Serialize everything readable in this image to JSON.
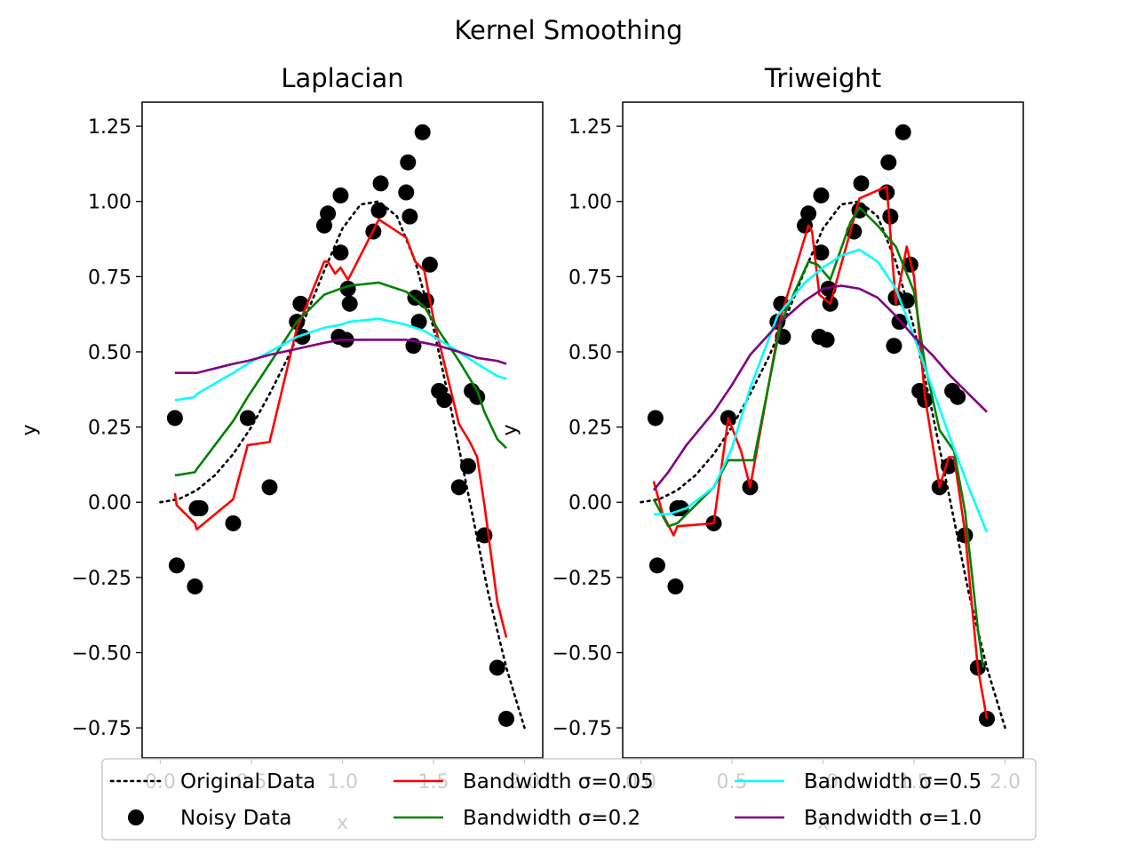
{
  "figure": {
    "title": "Kernel Smoothing"
  },
  "legend": {
    "placement": "bottom-center",
    "entries": [
      {
        "label": "Original Data",
        "color": "#000000",
        "style": "dotted-line"
      },
      {
        "label": "Noisy Data",
        "color": "#000000",
        "style": "marker"
      },
      {
        "label": "Bandwidth σ=0.05",
        "color": "#ff0000",
        "style": "line"
      },
      {
        "label": "Bandwidth σ=0.2",
        "color": "#008000",
        "style": "line"
      },
      {
        "label": "Bandwidth σ=0.5",
        "color": "#00ffff",
        "style": "line"
      },
      {
        "label": "Bandwidth σ=1.0",
        "color": "#800080",
        "style": "line"
      }
    ]
  },
  "chart_data": [
    {
      "type": "line",
      "title": "Laplacian",
      "xlabel": "x",
      "ylabel": "y",
      "xlim": [
        -0.1,
        2.1
      ],
      "ylim": [
        -0.85,
        1.33
      ],
      "xticks": [
        0.0,
        0.5,
        1.0,
        1.5,
        2.0
      ],
      "xtick_labels": [
        "0.0",
        "0.5",
        "1.0",
        "1.5",
        "2.0"
      ],
      "yticks": [
        -0.75,
        -0.5,
        -0.25,
        0.0,
        0.25,
        0.5,
        0.75,
        1.0,
        1.25
      ],
      "ytick_labels": [
        "−0.75",
        "−0.50",
        "−0.25",
        "0.00",
        "0.25",
        "0.50",
        "0.75",
        "1.00",
        "1.25"
      ],
      "grid": false,
      "original": {
        "x": [
          0,
          0.1,
          0.2,
          0.3,
          0.4,
          0.5,
          0.6,
          0.7,
          0.8,
          0.9,
          1.0,
          1.1,
          1.2,
          1.3,
          1.4,
          1.5,
          1.6,
          1.7,
          1.8,
          1.9,
          2.0
        ],
        "y": [
          0.0,
          0.01,
          0.04,
          0.09,
          0.16,
          0.25,
          0.36,
          0.48,
          0.62,
          0.77,
          0.91,
          0.99,
          1.0,
          0.95,
          0.8,
          0.58,
          0.3,
          0.0,
          -0.3,
          -0.55,
          -0.75
        ]
      },
      "noisy": {
        "x": [
          0.08,
          0.09,
          0.19,
          0.2,
          0.22,
          0.4,
          0.48,
          0.6,
          0.75,
          0.77,
          0.78,
          0.9,
          0.92,
          0.98,
          0.99,
          0.99,
          1.02,
          1.03,
          1.04,
          1.17,
          1.2,
          1.21,
          1.35,
          1.36,
          1.37,
          1.39,
          1.4,
          1.42,
          1.44,
          1.46,
          1.48,
          1.53,
          1.56,
          1.64,
          1.69,
          1.71,
          1.74,
          1.78,
          1.85,
          1.9
        ],
        "y": [
          0.28,
          -0.21,
          -0.28,
          -0.02,
          -0.02,
          -0.07,
          0.28,
          0.05,
          0.6,
          0.66,
          0.55,
          0.92,
          0.96,
          0.55,
          0.83,
          1.02,
          0.54,
          0.71,
          0.66,
          0.9,
          0.97,
          1.06,
          1.03,
          1.13,
          0.95,
          0.52,
          0.68,
          0.6,
          1.23,
          0.67,
          0.79,
          0.37,
          0.34,
          0.05,
          0.12,
          0.37,
          0.35,
          -0.11,
          -0.55,
          -0.72
        ]
      },
      "series": [
        {
          "name": "Bandwidth σ=0.05",
          "color": "#ff0000",
          "x": [
            0.08,
            0.09,
            0.19,
            0.2,
            0.4,
            0.48,
            0.6,
            0.75,
            0.78,
            0.9,
            0.92,
            0.96,
            0.99,
            1.03,
            1.04,
            1.2,
            1.35,
            1.4,
            1.45,
            1.5,
            1.64,
            1.7,
            1.74,
            1.78,
            1.85,
            1.9
          ],
          "y": [
            0.03,
            -0.01,
            -0.07,
            -0.09,
            0.01,
            0.19,
            0.2,
            0.58,
            0.62,
            0.8,
            0.8,
            0.76,
            0.78,
            0.74,
            0.75,
            0.94,
            0.88,
            0.8,
            0.77,
            0.61,
            0.26,
            0.2,
            0.15,
            -0.01,
            -0.33,
            -0.45
          ]
        },
        {
          "name": "Bandwidth σ=0.2",
          "color": "#008000",
          "x": [
            0.08,
            0.09,
            0.19,
            0.2,
            0.4,
            0.48,
            0.6,
            0.75,
            0.9,
            0.99,
            1.04,
            1.2,
            1.35,
            1.45,
            1.53,
            1.64,
            1.74,
            1.78,
            1.85,
            1.9
          ],
          "y": [
            0.09,
            0.09,
            0.1,
            0.11,
            0.27,
            0.35,
            0.46,
            0.6,
            0.69,
            0.71,
            0.72,
            0.73,
            0.7,
            0.65,
            0.57,
            0.47,
            0.37,
            0.3,
            0.21,
            0.18
          ]
        },
        {
          "name": "Bandwidth σ=0.5",
          "color": "#00ffff",
          "x": [
            0.08,
            0.09,
            0.19,
            0.2,
            0.4,
            0.48,
            0.6,
            0.75,
            0.9,
            0.99,
            1.04,
            1.2,
            1.35,
            1.45,
            1.53,
            1.64,
            1.74,
            1.85,
            1.9
          ],
          "y": [
            0.34,
            0.34,
            0.35,
            0.36,
            0.43,
            0.46,
            0.5,
            0.55,
            0.58,
            0.59,
            0.6,
            0.61,
            0.59,
            0.57,
            0.54,
            0.5,
            0.46,
            0.42,
            0.41
          ]
        },
        {
          "name": "Bandwidth σ=1.0",
          "color": "#800080",
          "x": [
            0.08,
            0.09,
            0.19,
            0.2,
            0.4,
            0.48,
            0.6,
            0.75,
            0.9,
            0.99,
            1.04,
            1.2,
            1.35,
            1.45,
            1.53,
            1.64,
            1.74,
            1.85,
            1.9
          ],
          "y": [
            0.43,
            0.43,
            0.43,
            0.43,
            0.46,
            0.47,
            0.49,
            0.51,
            0.53,
            0.54,
            0.54,
            0.54,
            0.54,
            0.53,
            0.52,
            0.5,
            0.48,
            0.47,
            0.46
          ]
        }
      ]
    },
    {
      "type": "line",
      "title": "Triweight",
      "xlabel": "x",
      "ylabel": "y",
      "xlim": [
        -0.1,
        2.1
      ],
      "ylim": [
        -0.85,
        1.33
      ],
      "xticks": [
        0.0,
        0.5,
        1.0,
        1.5,
        2.0
      ],
      "xtick_labels": [
        "0.0",
        "0.5",
        "1.0",
        "1.5",
        "2.0"
      ],
      "yticks": [
        -0.75,
        -0.5,
        -0.25,
        0.0,
        0.25,
        0.5,
        0.75,
        1.0,
        1.25
      ],
      "ytick_labels": [
        "−0.75",
        "−0.50",
        "−0.25",
        "0.00",
        "0.25",
        "0.50",
        "0.75",
        "1.00",
        "1.25"
      ],
      "grid": false,
      "original": {
        "x": [
          0,
          0.1,
          0.2,
          0.3,
          0.4,
          0.5,
          0.6,
          0.7,
          0.8,
          0.9,
          1.0,
          1.1,
          1.2,
          1.3,
          1.4,
          1.5,
          1.6,
          1.7,
          1.8,
          1.9,
          2.0
        ],
        "y": [
          0.0,
          0.01,
          0.04,
          0.09,
          0.16,
          0.25,
          0.36,
          0.48,
          0.62,
          0.77,
          0.91,
          0.99,
          1.0,
          0.95,
          0.8,
          0.58,
          0.3,
          0.0,
          -0.3,
          -0.55,
          -0.75
        ]
      },
      "noisy": {
        "x": [
          0.08,
          0.09,
          0.19,
          0.2,
          0.22,
          0.4,
          0.48,
          0.6,
          0.75,
          0.77,
          0.78,
          0.9,
          0.92,
          0.98,
          0.99,
          0.99,
          1.02,
          1.03,
          1.04,
          1.17,
          1.2,
          1.21,
          1.35,
          1.36,
          1.37,
          1.39,
          1.4,
          1.42,
          1.44,
          1.46,
          1.48,
          1.53,
          1.56,
          1.64,
          1.69,
          1.71,
          1.74,
          1.78,
          1.85,
          1.9
        ],
        "y": [
          0.28,
          -0.21,
          -0.28,
          -0.02,
          -0.02,
          -0.07,
          0.28,
          0.05,
          0.6,
          0.66,
          0.55,
          0.92,
          0.96,
          0.55,
          0.83,
          1.02,
          0.54,
          0.71,
          0.66,
          0.9,
          0.97,
          1.06,
          1.03,
          1.13,
          0.95,
          0.52,
          0.68,
          0.6,
          1.23,
          0.67,
          0.79,
          0.37,
          0.34,
          0.05,
          0.12,
          0.37,
          0.35,
          -0.11,
          -0.55,
          -0.72
        ]
      },
      "series": [
        {
          "name": "Bandwidth σ=0.05",
          "color": "#ff0000",
          "x": [
            0.07,
            0.12,
            0.18,
            0.2,
            0.4,
            0.48,
            0.55,
            0.6,
            0.77,
            0.92,
            0.94,
            0.98,
            1.04,
            1.15,
            1.2,
            1.35,
            1.4,
            1.46,
            1.5,
            1.56,
            1.64,
            1.69,
            1.72,
            1.78,
            1.85,
            1.9
          ],
          "y": [
            0.07,
            -0.04,
            -0.11,
            -0.08,
            -0.07,
            0.28,
            0.17,
            0.05,
            0.62,
            0.92,
            0.9,
            0.69,
            0.66,
            0.9,
            1.01,
            1.05,
            0.66,
            0.85,
            0.75,
            0.35,
            0.05,
            0.15,
            0.15,
            -0.1,
            -0.55,
            -0.72
          ]
        },
        {
          "name": "Bandwidth σ=0.2",
          "color": "#008000",
          "x": [
            0.07,
            0.15,
            0.2,
            0.4,
            0.48,
            0.55,
            0.62,
            0.77,
            0.92,
            0.97,
            1.04,
            1.15,
            1.2,
            1.3,
            1.4,
            1.5,
            1.56,
            1.64,
            1.72,
            1.78,
            1.85,
            1.88
          ],
          "y": [
            0.01,
            -0.08,
            -0.07,
            0.05,
            0.14,
            0.14,
            0.14,
            0.6,
            0.8,
            0.79,
            0.74,
            0.93,
            0.98,
            0.92,
            0.85,
            0.7,
            0.46,
            0.24,
            0.17,
            -0.03,
            -0.42,
            -0.55
          ]
        },
        {
          "name": "Bandwidth σ=0.5",
          "color": "#00ffff",
          "x": [
            0.07,
            0.15,
            0.25,
            0.4,
            0.5,
            0.6,
            0.75,
            0.9,
            1.0,
            1.1,
            1.2,
            1.3,
            1.4,
            1.5,
            1.6,
            1.7,
            1.8,
            1.9
          ],
          "y": [
            -0.04,
            -0.04,
            -0.02,
            0.05,
            0.18,
            0.38,
            0.62,
            0.73,
            0.78,
            0.82,
            0.84,
            0.8,
            0.71,
            0.55,
            0.38,
            0.21,
            0.05,
            -0.1
          ]
        },
        {
          "name": "Bandwidth σ=1.0",
          "color": "#800080",
          "x": [
            0.07,
            0.15,
            0.25,
            0.4,
            0.5,
            0.6,
            0.75,
            0.9,
            1.0,
            1.1,
            1.2,
            1.3,
            1.4,
            1.5,
            1.6,
            1.7,
            1.8,
            1.9
          ],
          "y": [
            0.04,
            0.1,
            0.19,
            0.3,
            0.39,
            0.49,
            0.59,
            0.67,
            0.71,
            0.72,
            0.71,
            0.68,
            0.62,
            0.55,
            0.49,
            0.42,
            0.36,
            0.3
          ]
        }
      ]
    }
  ]
}
